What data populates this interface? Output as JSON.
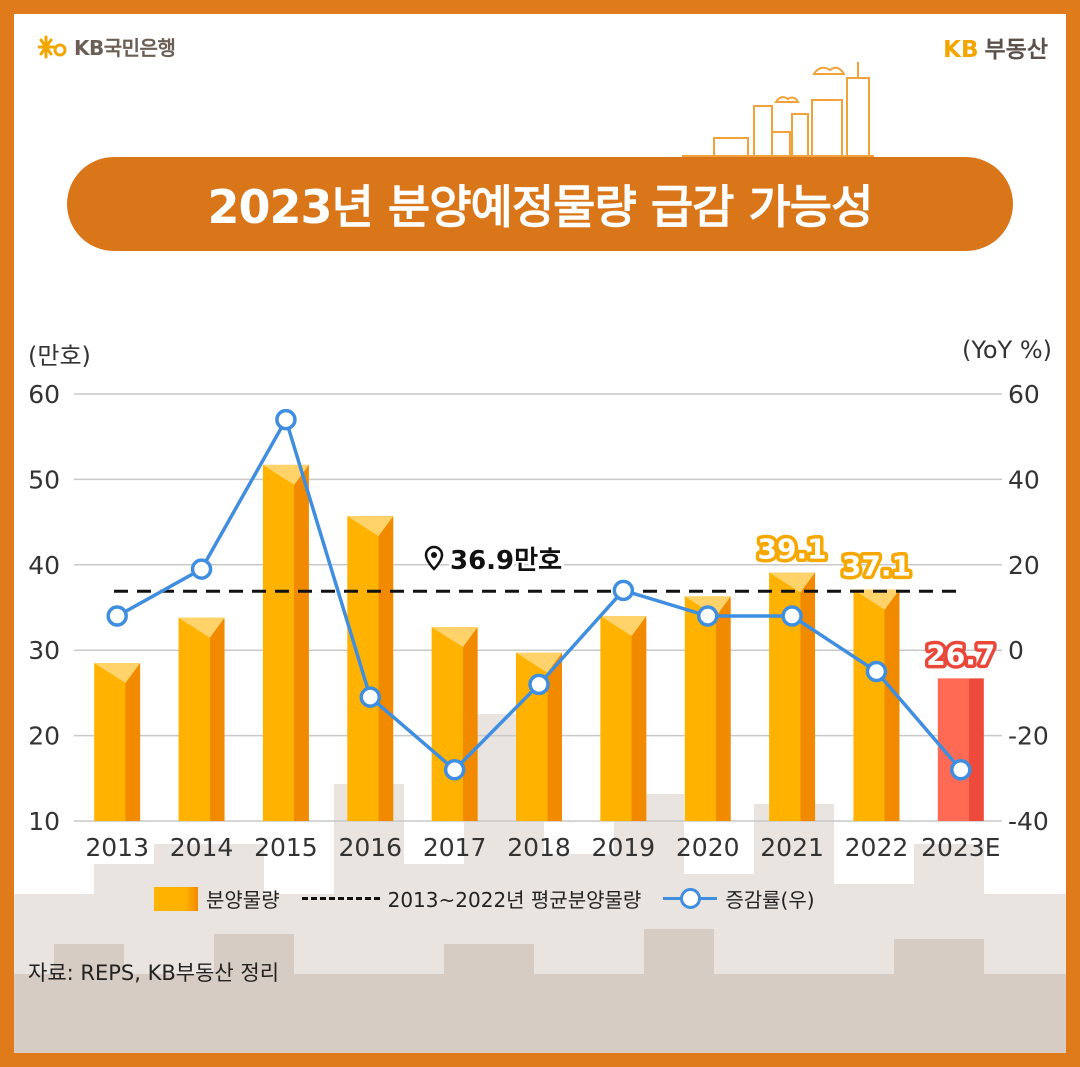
{
  "header": {
    "left_brand": "KB국민은행",
    "right_kb": "KB",
    "right_brand": "부동산"
  },
  "title": "2023년 분양예정물량 급감 가능성",
  "left_unit": "(만호)",
  "right_unit": "(YoY %)",
  "legend": {
    "bar": "분양물량",
    "dash": "2013~2022년 평균분양물량",
    "line": "증감률(우)"
  },
  "source": "자료: REPS, KB부동산 정리",
  "colors": {
    "frame": "#e07b1c",
    "title_bg": "#d9761a",
    "bar": "#ffb300",
    "bar_dark": "#f28a00",
    "bar_2023": "#ee4a3c",
    "line": "#3f8ee0",
    "label_2021": "#f7a800",
    "label_2023": "#e8473a"
  },
  "chart_data": {
    "type": "bar",
    "categories": [
      "2013",
      "2014",
      "2015",
      "2016",
      "2017",
      "2018",
      "2019",
      "2020",
      "2021",
      "2022",
      "2023E"
    ],
    "series": [
      {
        "name": "분양물량",
        "axis": "left",
        "type": "bar",
        "values": [
          28.5,
          33.8,
          51.7,
          45.7,
          32.7,
          29.7,
          34.0,
          36.3,
          39.1,
          37.1,
          26.7
        ]
      },
      {
        "name": "증감률(우)",
        "axis": "right",
        "type": "line",
        "values": [
          8,
          19,
          54,
          -11,
          -28,
          -8,
          14,
          8,
          8,
          -5,
          -28
        ]
      },
      {
        "name": "2013~2022년 평균분양물량",
        "axis": "left",
        "type": "dashed-line",
        "value": 36.9
      }
    ],
    "left_axis": {
      "ylim": [
        10,
        60
      ],
      "ticks": [
        "10",
        "20",
        "30",
        "40",
        "50",
        "60"
      ]
    },
    "right_axis": {
      "ylim": [
        -40,
        60
      ],
      "ticks": [
        "-40",
        "-20",
        "0",
        "20",
        "40",
        "60"
      ]
    },
    "average_label": "36.9만호",
    "data_labels": {
      "2021": "39.1",
      "2022": "37.1",
      "2023E": "26.7"
    },
    "grid": true,
    "legend_position": "bottom"
  }
}
